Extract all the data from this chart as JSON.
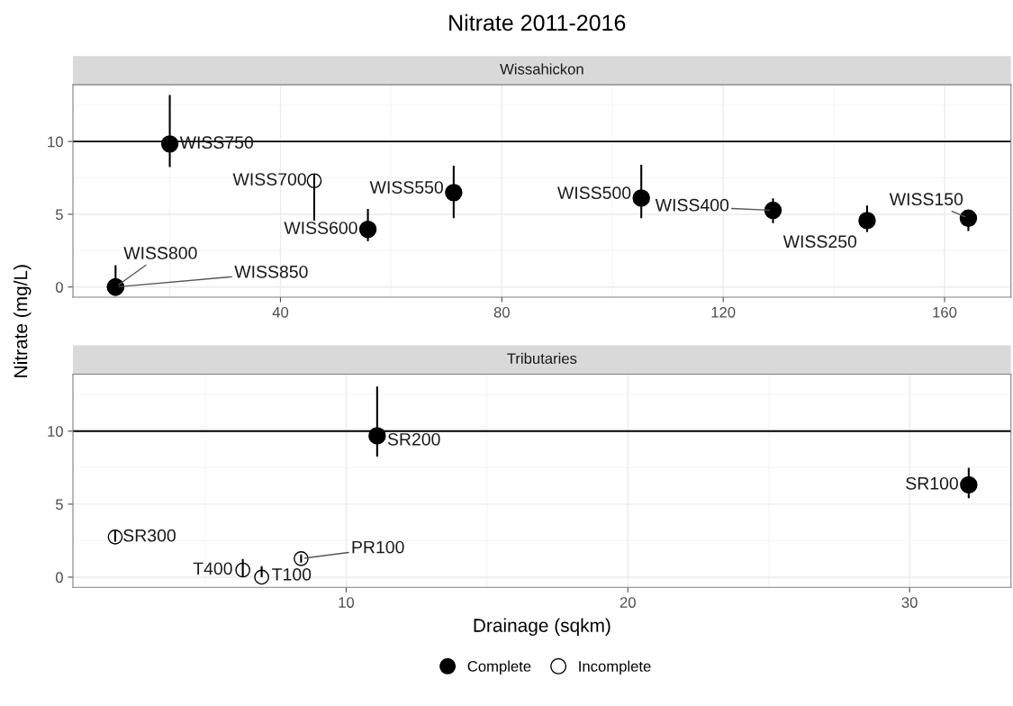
{
  "chart_data": [
    {
      "type": "scatter",
      "title": "Nitrate 2011-2016",
      "subtitle": "Wissahickon",
      "ylabel": "Nitrate (mg/L)",
      "marker": "circle",
      "grid": true,
      "legend": "bottom",
      "xlim": [
        2.5,
        172.0
      ],
      "xticks": [
        40,
        80,
        120,
        160
      ],
      "ylim": [
        -0.7,
        13.9
      ],
      "yticks": [
        0,
        5,
        10
      ],
      "ref_lines": [
        {
          "axis": "y",
          "value": 10,
          "color": "#000000"
        }
      ],
      "series": [
        {
          "name": "Complete",
          "color": "#000000",
          "x": [
            20.0,
            55.8,
            71.3,
            105.2,
            129.0,
            146.0,
            164.3,
            10.2,
            10.2
          ],
          "values": [
            9.83,
            3.96,
            6.49,
            6.11,
            5.27,
            4.57,
            4.73,
            0,
            0
          ],
          "errors": [
            [
              8.25,
              13.2
            ],
            [
              3.15,
              5.36
            ],
            [
              4.74,
              8.34
            ],
            [
              4.73,
              8.4
            ],
            [
              4.4,
              6.1
            ],
            [
              3.78,
              5.6
            ],
            [
              3.85,
              5.27
            ],
            [
              0,
              1.5
            ],
            null
          ]
        },
        {
          "name": "Incomplete",
          "color": "#000000",
          "x": [
            46.1
          ],
          "values": [
            7.3
          ],
          "errors": [
            [
              4.57,
              7.75
            ]
          ]
        }
      ],
      "annotations": [
        {
          "text": "WISS750",
          "x": 20.0,
          "y": 9.83
        },
        {
          "text": "WISS700",
          "x": 46.1,
          "y": 7.3
        },
        {
          "text": "WISS600",
          "x": 55.8,
          "y": 3.96
        },
        {
          "text": "WISS550",
          "x": 71.3,
          "y": 6.49
        },
        {
          "text": "WISS500",
          "x": 105.2,
          "y": 6.11
        },
        {
          "text": "WISS400",
          "x": 129.0,
          "y": 5.27
        },
        {
          "text": "WISS250",
          "x": 146.0,
          "y": 4.57
        },
        {
          "text": "WISS150",
          "x": 164.3,
          "y": 4.73
        },
        {
          "text": "WISS800",
          "x": 10.2,
          "y": 0
        },
        {
          "text": "WISS850",
          "x": 10.2,
          "y": 0
        }
      ]
    },
    {
      "type": "scatter",
      "subtitle": "Tributaries",
      "xlabel": "Drainage (sqkm)",
      "marker": "circle",
      "grid": true,
      "legend": "bottom",
      "xlim": [
        0.3,
        33.6
      ],
      "xticks": [
        10,
        20,
        30
      ],
      "ylim": [
        -0.7,
        13.9
      ],
      "yticks": [
        0,
        5,
        10
      ],
      "ref_lines": [
        {
          "axis": "y",
          "value": 10,
          "color": "#000000"
        }
      ],
      "series": [
        {
          "name": "Complete",
          "color": "#000000",
          "x": [
            11.1,
            32.1
          ],
          "values": [
            9.68,
            6.32
          ],
          "errors": [
            [
              8.26,
              13.05
            ],
            [
              5.4,
              7.49
            ]
          ]
        },
        {
          "name": "Incomplete",
          "color": "#000000",
          "x": [
            1.8,
            6.33,
            7.0,
            8.4
          ],
          "values": [
            2.75,
            0.49,
            0,
            1.27
          ],
          "errors": [
            [
              2.43,
              3.18
            ],
            [
              0,
              1.24
            ],
            [
              0,
              0.75
            ],
            [
              1.0,
              1.55
            ]
          ]
        }
      ],
      "annotations": [
        {
          "text": "SR200",
          "x": 11.1,
          "y": 9.68
        },
        {
          "text": "SR100",
          "x": 32.1,
          "y": 6.32
        },
        {
          "text": "SR300",
          "x": 1.8,
          "y": 2.75
        },
        {
          "text": "T400",
          "x": 6.33,
          "y": 0.49
        },
        {
          "text": "T100",
          "x": 7.0,
          "y": 0
        },
        {
          "text": "PR100",
          "x": 8.4,
          "y": 1.27
        }
      ]
    }
  ]
}
